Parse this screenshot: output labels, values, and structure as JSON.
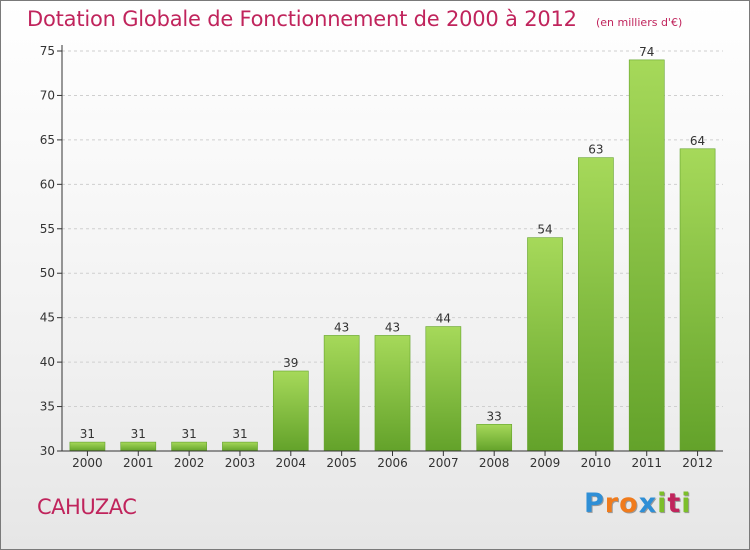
{
  "chart_data": {
    "type": "bar",
    "title": "Dotation Globale de Fonctionnement de 2000 à 2012",
    "subtitle": "(en milliers d'€)",
    "categories": [
      "2000",
      "2001",
      "2002",
      "2003",
      "2004",
      "2005",
      "2006",
      "2007",
      "2008",
      "2009",
      "2010",
      "2011",
      "2012"
    ],
    "values": [
      31,
      31,
      31,
      31,
      39,
      43,
      43,
      44,
      33,
      54,
      63,
      74,
      64
    ],
    "data_labels": [
      "31",
      "31",
      "31",
      "31",
      "39",
      "43",
      "43",
      "44",
      "33",
      "54",
      "63",
      "74",
      "64"
    ],
    "xlabel": "",
    "ylabel": "",
    "ylim": [
      30,
      75
    ],
    "yticks": [
      "30",
      "35",
      "40",
      "45",
      "50",
      "55",
      "60",
      "65",
      "70",
      "75"
    ],
    "grid": "horizontal dashed",
    "bar_color": "#7cc23a",
    "bar_color_light": "#a6d95a",
    "bar_color_dark": "#63a22a"
  },
  "footer": {
    "place": "CAHUZAC",
    "logo_letters": [
      "P",
      "r",
      "o",
      "x",
      "i",
      "t",
      "i"
    ],
    "logo_colors": [
      "#2f8fd6",
      "#f07b1c",
      "#f07b1c",
      "#2f8fd6",
      "#7cbf2a",
      "#c0245c",
      "#7cbf2a"
    ]
  },
  "colors": {
    "title": "#c0245c",
    "axis": "#333333",
    "grid": "#cfcfcf"
  }
}
